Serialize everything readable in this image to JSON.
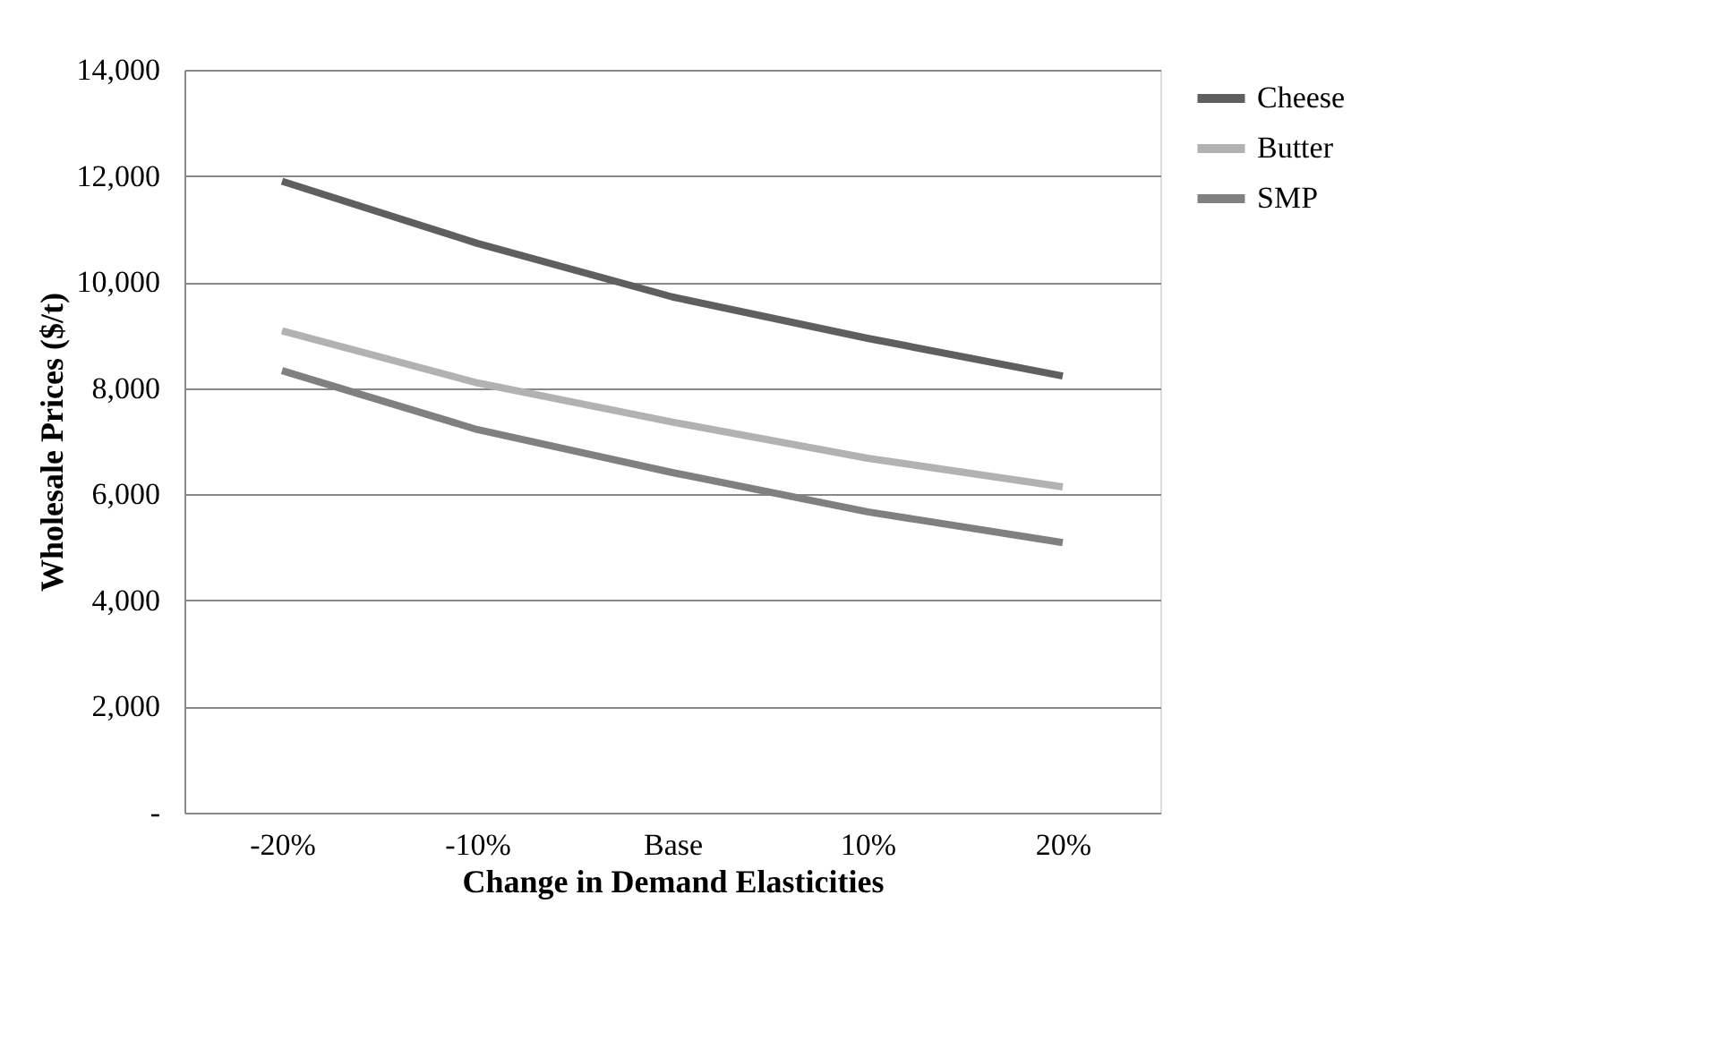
{
  "chart_data": {
    "type": "line",
    "xlabel": "Change in Demand Elasticities",
    "ylabel": "Wholesale Prices ($/t)",
    "categories": [
      "-20%",
      "-10%",
      "Base",
      "10%",
      "20%"
    ],
    "series": [
      {
        "name": "Cheese",
        "color": "#5f5f5f",
        "values": [
          11900,
          10730,
          9720,
          8940,
          8230
        ]
      },
      {
        "name": "Butter",
        "color": "#b2b2b2",
        "values": [
          9080,
          8100,
          7360,
          6680,
          6140
        ]
      },
      {
        "name": "SMP",
        "color": "#808080",
        "values": [
          8330,
          7220,
          6410,
          5670,
          5090
        ]
      }
    ],
    "ylim": [
      0,
      14000
    ],
    "yticks": [
      {
        "value": 0,
        "label": "-"
      },
      {
        "value": 2000,
        "label": "2,000"
      },
      {
        "value": 4000,
        "label": "4,000"
      },
      {
        "value": 6000,
        "label": "6,000"
      },
      {
        "value": 8000,
        "label": "8,000"
      },
      {
        "value": 10000,
        "label": "10,000"
      },
      {
        "value": 12000,
        "label": "12,000"
      },
      {
        "value": 14000,
        "label": "14,000"
      }
    ],
    "grid": "y",
    "legend": "right",
    "marker": "none",
    "line_style": "solid"
  }
}
